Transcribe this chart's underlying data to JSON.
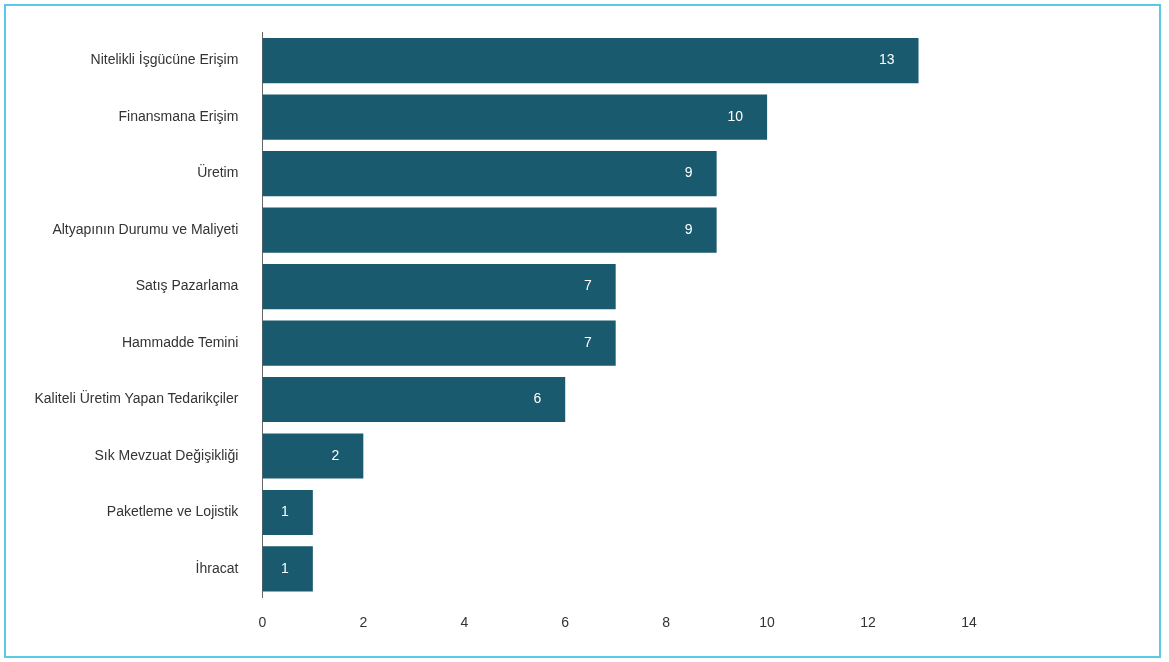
{
  "chart_data": {
    "type": "bar",
    "orientation": "horizontal",
    "categories": [
      "Nitelikli İşgücüne Erişim",
      "Finansmana Erişim",
      "Üretim",
      "Altyapının Durumu ve Maliyeti",
      "Satış Pazarlama",
      "Hammadde Temini",
      "Kaliteli Üretim Yapan Tedarikçiler",
      "Sık Mevzuat Değişikliği",
      "Paketleme ve Lojistik",
      "İhracat"
    ],
    "values": [
      13,
      10,
      9,
      9,
      7,
      7,
      6,
      2,
      1,
      1
    ],
    "color": "#1a5a6e",
    "xlim": [
      0,
      14
    ],
    "xticks": [
      0,
      2,
      4,
      6,
      8,
      10,
      12,
      14
    ],
    "grid": false,
    "legend": false,
    "data_labels": true
  }
}
